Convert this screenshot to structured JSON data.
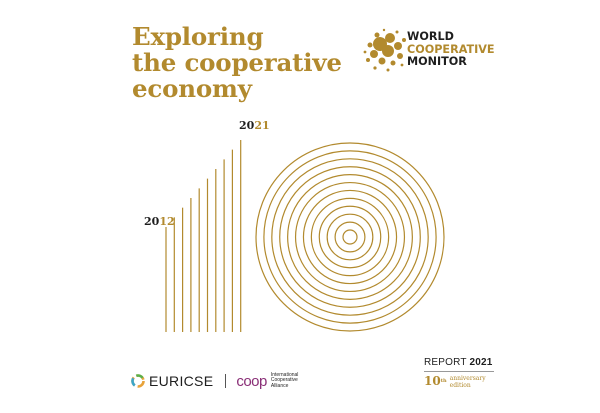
{
  "cover": {
    "title_lines": [
      "Exploring",
      "the cooperative",
      "economy"
    ],
    "brand": {
      "line1": "WORLD",
      "line2": "COOPERATIVE",
      "line3": "MONITOR"
    },
    "year_start": {
      "prefix": "20",
      "suffix": "12"
    },
    "year_end": {
      "prefix": "20",
      "suffix": "21"
    },
    "bars_count": 10,
    "rings_count": 12,
    "footer": {
      "euricse": "EURICSE",
      "coop_word": "coop",
      "coop_sub": [
        "International",
        "Cooperative",
        "Alliance"
      ]
    },
    "report": {
      "label": "REPORT",
      "year": "2021"
    },
    "edition": {
      "number": "10",
      "suffix": "th",
      "line1": "anniversary",
      "line2": "edition"
    },
    "colors": {
      "gold": "#b28a2e",
      "dark": "#1e1e1e",
      "coop_purple": "#8a2f77"
    }
  }
}
